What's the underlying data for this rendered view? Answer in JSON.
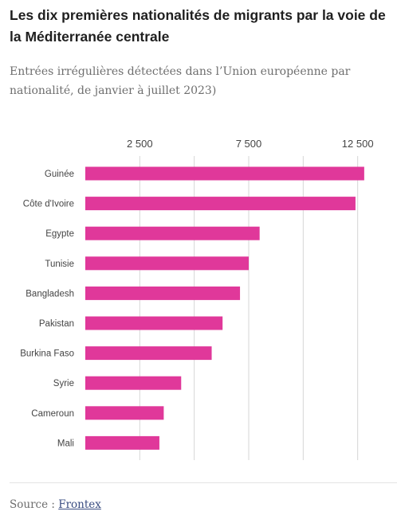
{
  "header": {
    "title": "Les dix premières nationalités de migrants par la voie de la Méditerranée centrale",
    "subtitle": "Entrées irrégulières détectées dans l’Union européenne par nationalité, de janvier à juillet 2023)"
  },
  "footer": {
    "source_label": "Source :",
    "source_link": "Frontex"
  },
  "colors": {
    "bar": "#e0389a",
    "grid": "#d6d6d6",
    "text": "#444444"
  },
  "chart_data": {
    "type": "bar",
    "orientation": "horizontal",
    "categories": [
      "Guinée",
      "Côte d'Ivoire",
      "Egypte",
      "Tunisie",
      "Bangladesh",
      "Pakistan",
      "Burkina Faso",
      "Syrie",
      "Cameroun",
      "Mali"
    ],
    "values": [
      12800,
      12400,
      8000,
      7500,
      7100,
      6300,
      5800,
      4400,
      3600,
      3400
    ],
    "ticks": [
      2500,
      7500,
      12500
    ],
    "tick_labels": [
      "2 500",
      "7 500",
      "12 500"
    ],
    "gridlines": [
      2500,
      5000,
      7500,
      10000,
      12500
    ],
    "xlim": [
      0,
      13500
    ],
    "grid": true
  }
}
